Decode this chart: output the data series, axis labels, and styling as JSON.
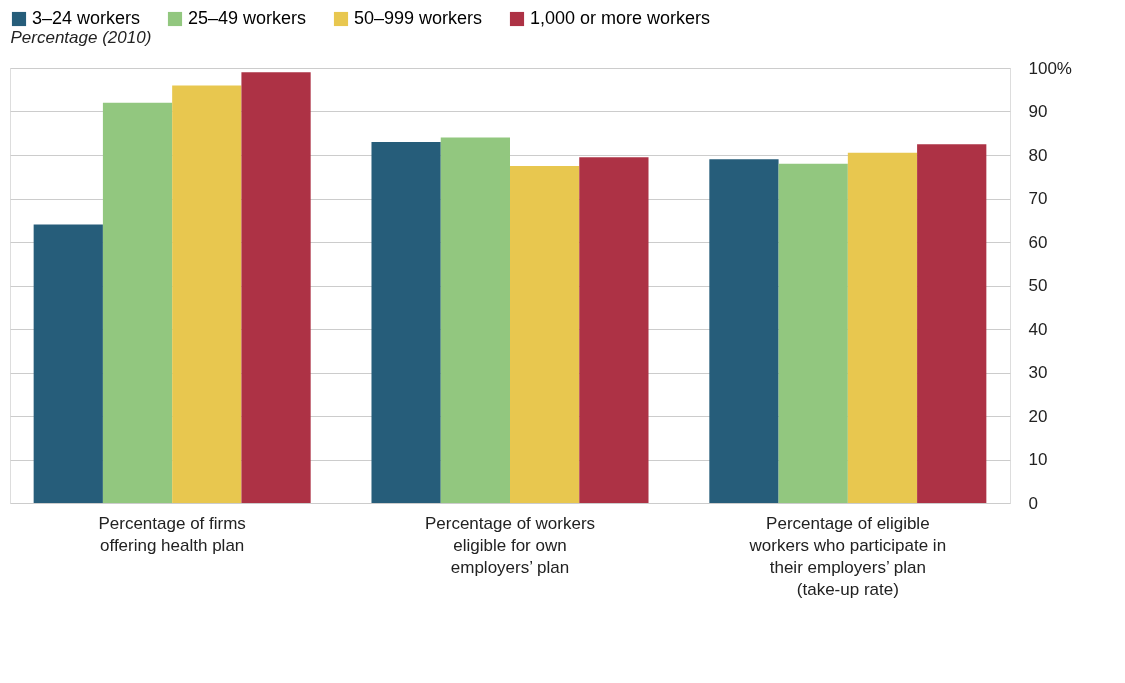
{
  "chart_data": {
    "type": "bar",
    "ylabel": "Percentage (2010)",
    "categories": [
      "Percentage of firms offering health plan",
      "Percentage of workers eligible for own employers’ plan",
      "Percentage of eligible workers who participate in their employers’ plan (take-up rate)"
    ],
    "series": [
      {
        "name": "3–24 workers",
        "color": "#265d7a",
        "values": [
          64,
          83,
          79
        ]
      },
      {
        "name": "25–49 workers",
        "color": "#92c77f",
        "values": [
          92,
          84,
          78
        ]
      },
      {
        "name": "50–999 workers",
        "color": "#e8c74f",
        "values": [
          96,
          77.5,
          80.5
        ]
      },
      {
        "name": "1,000 or more workers",
        "color": "#ad3245",
        "values": [
          99,
          79.5,
          82.5
        ]
      }
    ],
    "ylim": [
      0,
      100
    ],
    "yticks": [
      0,
      10,
      20,
      30,
      40,
      50,
      60,
      70,
      80,
      90,
      {
        "value": 100,
        "label": "100%"
      }
    ],
    "grid": "y",
    "legend": "top"
  }
}
